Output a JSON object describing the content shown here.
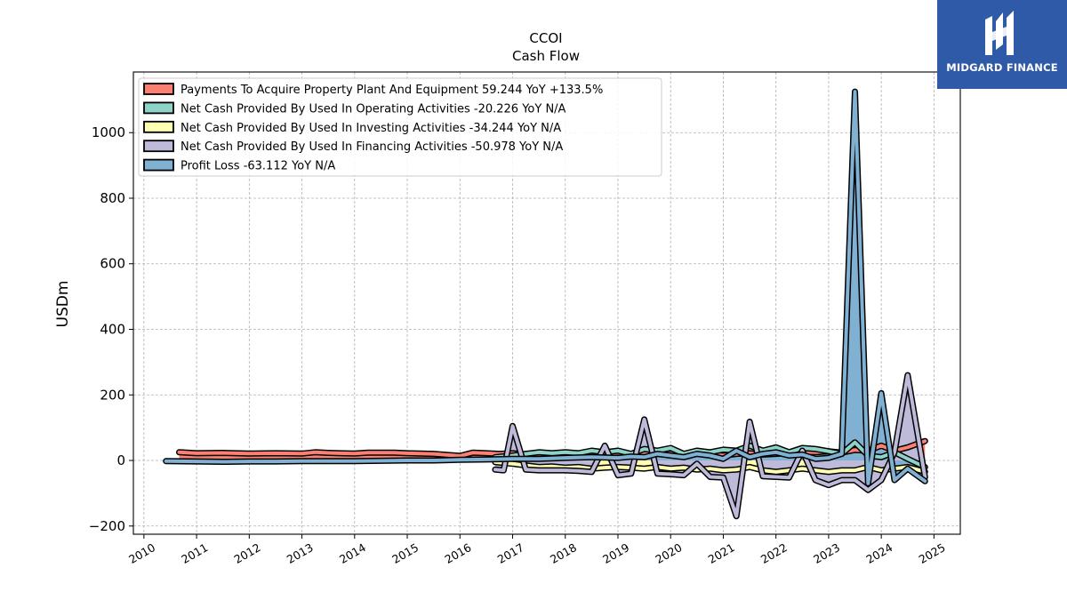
{
  "chart_data": {
    "type": "area",
    "title": "CCOI",
    "subtitle": "Cash Flow",
    "ylabel": "USDm",
    "xlabel": "",
    "xlim": [
      2009.8,
      2025.5
    ],
    "ylim": [
      -225,
      1185
    ],
    "x_ticks": [
      2010,
      2011,
      2012,
      2013,
      2014,
      2015,
      2016,
      2017,
      2018,
      2019,
      2020,
      2021,
      2022,
      2023,
      2024,
      2025
    ],
    "y_ticks": [
      -200,
      0,
      200,
      400,
      600,
      800,
      1000
    ],
    "y_tick_labels": [
      "−200",
      "0",
      "200",
      "400",
      "600",
      "800",
      "1000"
    ],
    "grid": true,
    "legend_position": "top-left",
    "series": [
      {
        "name": "Payments To Acquire Property Plant And Equipment  59.244 YoY +133.5%",
        "color": "#fb8072",
        "x": [
          2010.67,
          2011.0,
          2011.5,
          2012.0,
          2012.5,
          2013.0,
          2013.25,
          2013.5,
          2014.0,
          2014.25,
          2014.75,
          2015.0,
          2015.5,
          2016.0,
          2016.25,
          2016.5,
          2016.75,
          2017.0,
          2017.25,
          2017.5,
          2017.75,
          2018.0,
          2018.25,
          2018.5,
          2018.75,
          2019.0,
          2019.25,
          2019.5,
          2019.75,
          2020.0,
          2020.25,
          2020.5,
          2020.75,
          2021.0,
          2021.25,
          2021.5,
          2021.75,
          2022.0,
          2022.25,
          2022.5,
          2022.75,
          2023.0,
          2023.25,
          2023.5,
          2023.75,
          2024.0,
          2024.25,
          2024.5,
          2024.83
        ],
        "y": [
          25,
          22,
          23,
          21,
          22,
          21,
          25,
          23,
          21,
          24,
          24,
          22,
          20,
          14,
          24,
          22,
          20,
          22,
          18,
          17,
          18,
          18,
          15,
          18,
          20,
          24,
          20,
          22,
          20,
          21,
          18,
          22,
          20,
          15,
          20,
          22,
          18,
          20,
          23,
          26,
          25,
          28,
          24,
          32,
          30,
          45,
          30,
          40,
          59.244
        ]
      },
      {
        "name": "Net Cash Provided By Used In Operating Activities  -20.226 YoY N/A",
        "color": "#8dd3c7",
        "x": [
          2016.67,
          2017.0,
          2017.25,
          2017.5,
          2017.75,
          2018.0,
          2018.25,
          2018.5,
          2018.75,
          2019.0,
          2019.25,
          2019.5,
          2019.75,
          2020.0,
          2020.25,
          2020.5,
          2020.75,
          2021.0,
          2021.25,
          2021.5,
          2021.75,
          2022.0,
          2022.25,
          2022.5,
          2022.75,
          2023.0,
          2023.25,
          2023.5,
          2023.75,
          2024.0,
          2024.25,
          2024.5,
          2024.83
        ],
        "y": [
          10,
          15,
          20,
          25,
          22,
          25,
          22,
          30,
          25,
          30,
          20,
          35,
          30,
          38,
          20,
          30,
          25,
          33,
          30,
          45,
          30,
          40,
          25,
          38,
          35,
          28,
          20,
          55,
          15,
          10,
          25,
          5,
          -20.226
        ]
      },
      {
        "name": "Net Cash Provided By Used In Investing Activities  -34.244 YoY N/A",
        "color": "#ffffb3",
        "x": [
          2016.67,
          2017.0,
          2017.25,
          2017.5,
          2017.75,
          2018.0,
          2018.25,
          2018.5,
          2018.75,
          2019.0,
          2019.25,
          2019.5,
          2019.75,
          2020.0,
          2020.25,
          2020.5,
          2020.75,
          2021.0,
          2021.25,
          2021.5,
          2021.75,
          2022.0,
          2022.25,
          2022.5,
          2022.75,
          2023.0,
          2023.25,
          2023.5,
          2023.75,
          2024.0,
          2024.25,
          2024.5,
          2024.83
        ],
        "y": [
          -5,
          -10,
          -15,
          -20,
          -18,
          -22,
          -20,
          -25,
          -22,
          -20,
          -22,
          -25,
          -20,
          -25,
          -22,
          -28,
          -25,
          -30,
          -28,
          -20,
          -30,
          -35,
          -30,
          -25,
          -30,
          -35,
          -30,
          -30,
          -20,
          -30,
          -25,
          -20,
          -34.244
        ]
      },
      {
        "name": "Net Cash Provided By Used In Financing Activities  -50.978 YoY N/A",
        "color": "#bebada",
        "x": [
          2016.67,
          2016.83,
          2017.0,
          2017.25,
          2017.5,
          2017.75,
          2018.0,
          2018.25,
          2018.5,
          2018.75,
          2019.0,
          2019.25,
          2019.5,
          2019.75,
          2020.0,
          2020.25,
          2020.5,
          2020.75,
          2021.0,
          2021.25,
          2021.5,
          2021.75,
          2022.0,
          2022.25,
          2022.5,
          2022.75,
          2023.0,
          2023.25,
          2023.5,
          2023.75,
          2024.0,
          2024.25,
          2024.5,
          2024.83
        ],
        "y": [
          -28,
          -30,
          105,
          -28,
          -30,
          -30,
          -30,
          -32,
          -35,
          45,
          -45,
          -40,
          125,
          -40,
          -42,
          -45,
          -10,
          -50,
          -52,
          -170,
          118,
          -48,
          -50,
          -52,
          30,
          -60,
          -75,
          -60,
          -60,
          -90,
          -60,
          25,
          260,
          -50.978
        ]
      },
      {
        "name": "Profit Loss  -63.112 YoY N/A",
        "color": "#80b1d3",
        "x": [
          2010.42,
          2011.0,
          2011.5,
          2012.0,
          2012.5,
          2013.0,
          2013.5,
          2014.0,
          2014.5,
          2015.0,
          2015.5,
          2016.0,
          2016.5,
          2017.0,
          2017.5,
          2018.0,
          2018.5,
          2019.0,
          2019.25,
          2019.5,
          2019.75,
          2020.0,
          2020.25,
          2020.5,
          2020.75,
          2021.0,
          2021.25,
          2021.5,
          2021.75,
          2022.0,
          2022.25,
          2022.5,
          2022.75,
          2023.0,
          2023.25,
          2023.5,
          2023.75,
          2024.0,
          2024.25,
          2024.5,
          2024.83
        ],
        "y": [
          -2,
          -3,
          -4,
          -3,
          -3,
          -2,
          -2,
          -2,
          -1,
          0,
          0,
          2,
          3,
          5,
          5,
          8,
          10,
          8,
          12,
          10,
          20,
          15,
          10,
          20,
          15,
          5,
          30,
          10,
          20,
          25,
          15,
          18,
          5,
          8,
          20,
          1125,
          -70,
          205,
          -60,
          -25,
          -63.112
        ]
      }
    ]
  },
  "logo": {
    "text": "MIDGARD FINANCE",
    "icon": "midgard-logo-icon"
  }
}
